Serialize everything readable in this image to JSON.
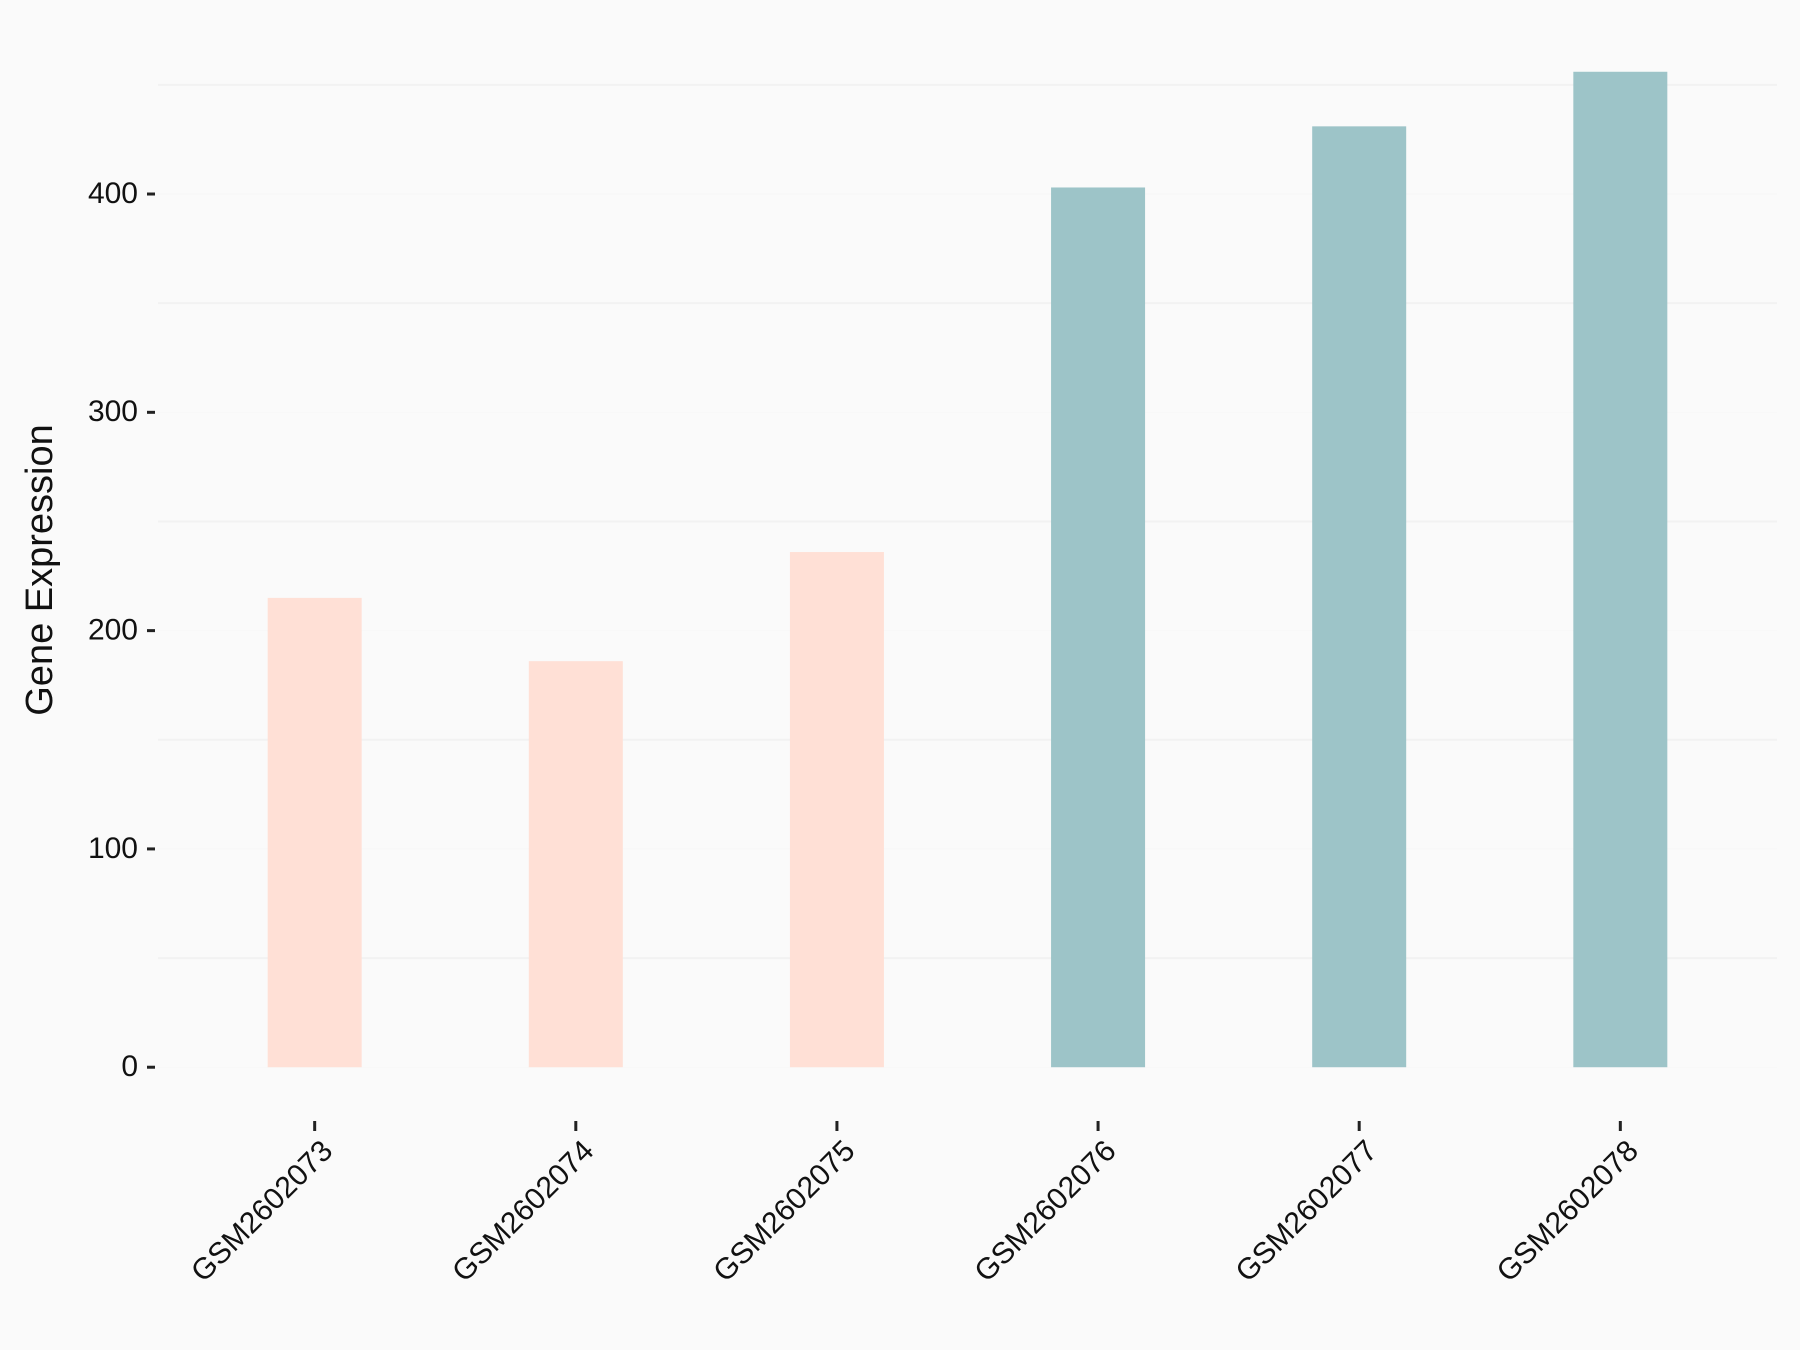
{
  "chart_data": {
    "type": "bar",
    "y_label": "Gene Expression",
    "categories": [
      "GSM2602073",
      "GSM2602074",
      "GSM2602075",
      "GSM2602076",
      "GSM2602077",
      "GSM2602078"
    ],
    "values": [
      215,
      186,
      236,
      403,
      431,
      456
    ],
    "colors": [
      "#ffe0d6",
      "#ffe0d6",
      "#ffe0d6",
      "#9dc4c8",
      "#9dc4c8",
      "#9dc4c8"
    ],
    "ylim": [
      -22.8,
      478.8
    ],
    "yticks": [
      0,
      100,
      200,
      300,
      400
    ],
    "minor_yticks": [
      50,
      150,
      250,
      350,
      450
    ],
    "grid": true
  }
}
